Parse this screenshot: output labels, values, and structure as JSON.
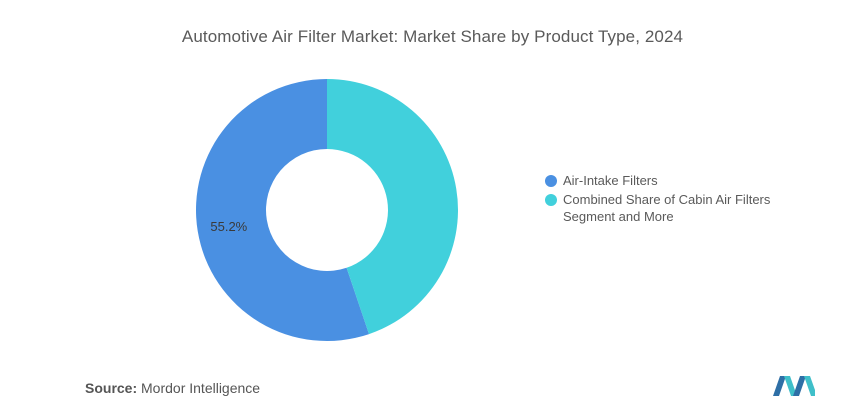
{
  "chart_data": {
    "type": "pie",
    "title": "Automotive Air Filter Market: Market Share by Product Type, 2024",
    "donut": true,
    "categories": [
      "Air-Intake Filters",
      "Combined Share of Cabin Air Filters Segment and More"
    ],
    "values": [
      55.2,
      44.8
    ],
    "data_labels": [
      "55.2%",
      ""
    ],
    "colors": [
      "#4a90e2",
      "#41d0dc"
    ],
    "legend_position": "right"
  },
  "source": {
    "label": "Source:",
    "text": "Mordor Intelligence"
  },
  "logo": {
    "icon": "mordor-intelligence-logo",
    "colors": [
      "#2e6fa6",
      "#3fbfc9"
    ]
  }
}
